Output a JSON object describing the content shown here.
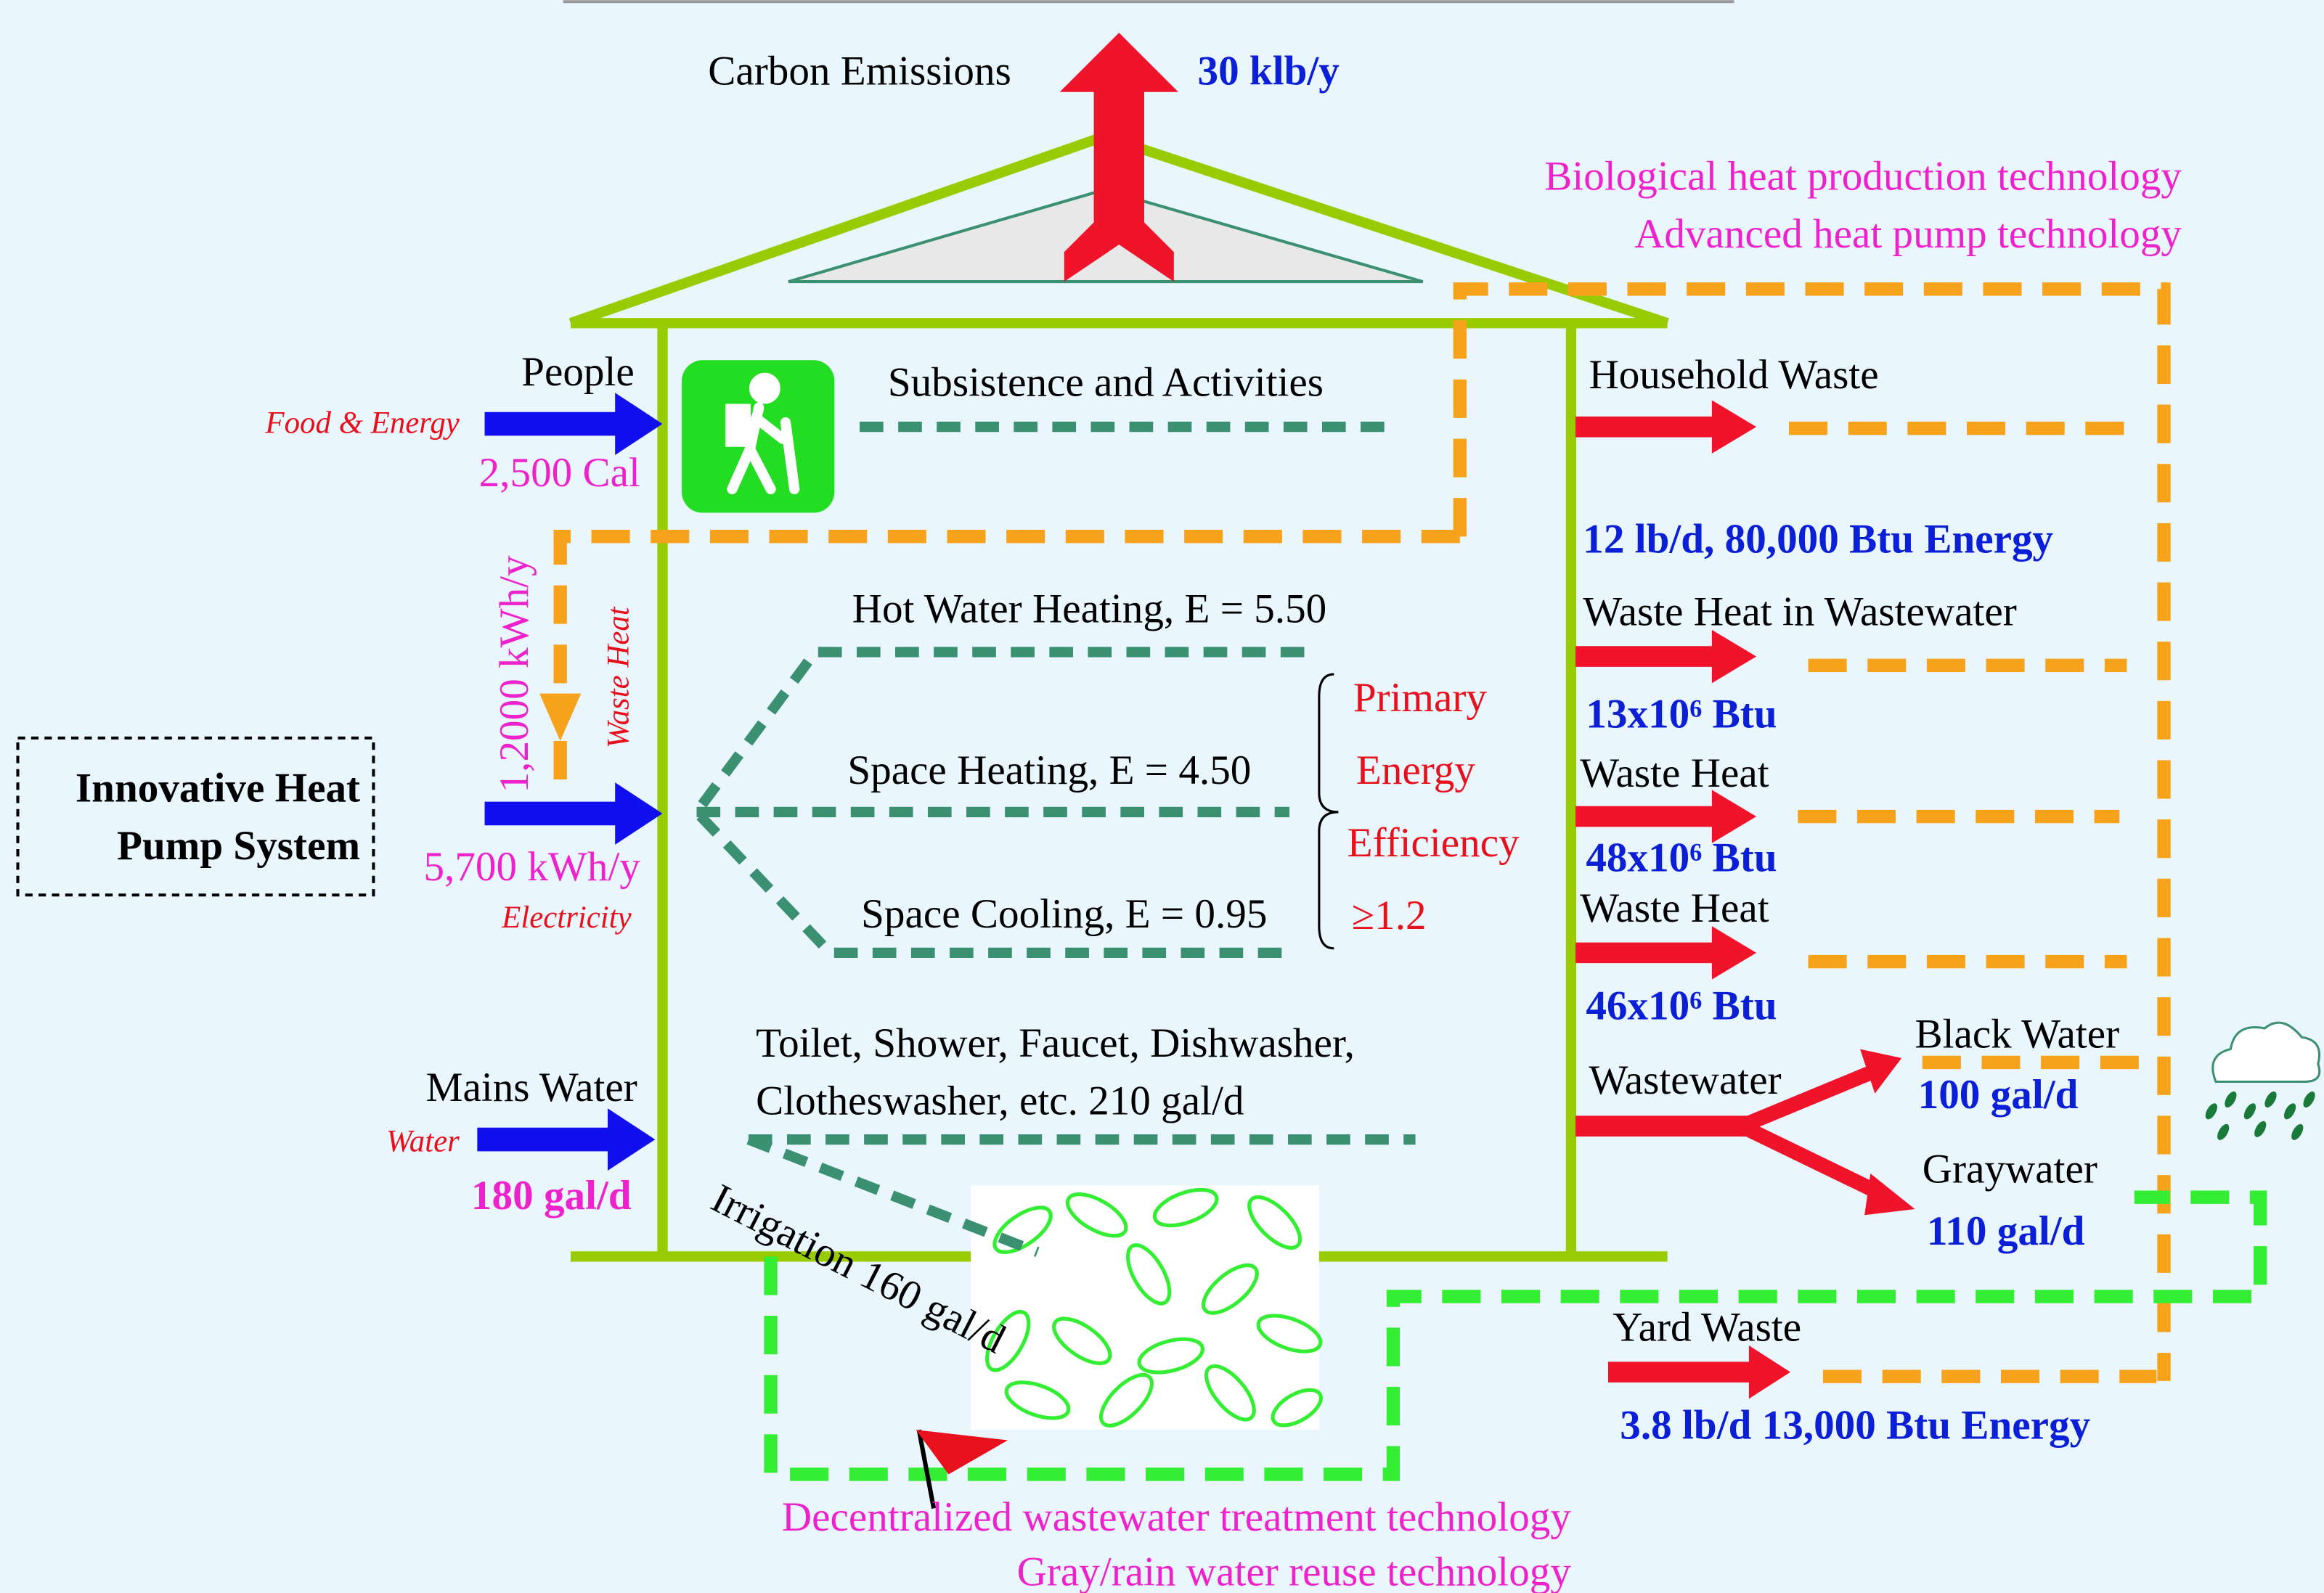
{
  "carbon": {
    "label": "Carbon Emissions",
    "value": "30 klb/y"
  },
  "top_technologies": [
    "Biological heat production technology",
    "Advanced heat pump technology"
  ],
  "inputs": {
    "people": {
      "label": "People",
      "kind": "Food & Energy",
      "amount": "2,500 Cal"
    },
    "waste_heat_return": {
      "amount": "1,2000 kWh/y",
      "kind": "Waste Heat"
    },
    "heat_pump": {
      "lines": [
        "Innovative Heat",
        "Pump System"
      ]
    },
    "electricity": {
      "amount": "5,700 kWh/y",
      "kind": "Electricity"
    },
    "water": {
      "label": "Mains Water",
      "kind": "Water",
      "amount": "180 gal/d"
    }
  },
  "uses": {
    "subsistence": "Subsistence and Activities",
    "hot_water": "Hot Water Heating, E = 5.50",
    "space_heating": "Space Heating, E = 4.50",
    "space_cooling": "Space Cooling, E = 0.95",
    "efficiency": [
      "Primary",
      "Energy",
      "Efficiency",
      "≥1.2"
    ],
    "water_use": [
      "Toilet, Shower, Faucet, Dishwasher,",
      "Clotheswasher, etc.  210 gal/d"
    ],
    "irrigation": "Irrigation 160 gal/d"
  },
  "outputs": {
    "household_waste": {
      "label": "Household Waste",
      "amount": "12 lb/d, 80,000 Btu Energy"
    },
    "waste_heat_wastewater": {
      "label": "Waste Heat in Wastewater",
      "amount": "13x10⁶ Btu"
    },
    "waste_heat_1": {
      "label": "Waste Heat",
      "amount": "48x10⁶ Btu"
    },
    "waste_heat_2": {
      "label": "Waste Heat",
      "amount": "46x10⁶ Btu"
    },
    "wastewater": {
      "label": "Wastewater"
    },
    "black_water": {
      "label": "Black Water",
      "amount": "100 gal/d"
    },
    "graywater": {
      "label": "Graywater",
      "amount": "110 gal/d"
    },
    "yard_waste": {
      "label": "Yard Waste",
      "amount": "3.8 lb/d 13,000 Btu Energy"
    }
  },
  "bottom_technologies": [
    "Decentralized wastewater treatment technology",
    "Gray/rain water reuse technology"
  ]
}
